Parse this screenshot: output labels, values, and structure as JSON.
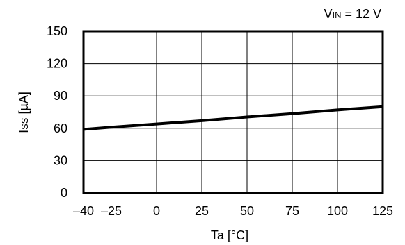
{
  "condition": {
    "symbol_main": "V",
    "symbol_sub": "IN",
    "value": " = 12 V"
  },
  "chart_data": {
    "type": "line",
    "xlabel": "Ta [°C]",
    "ylabel": {
      "main": "I",
      "sub": "SS",
      "unit": " [µA]"
    },
    "xlim": [
      -40,
      125
    ],
    "ylim": [
      0,
      150
    ],
    "x_ticks": [
      -40,
      -25,
      0,
      25,
      50,
      75,
      100,
      125
    ],
    "x_tick_labels": [
      "–40",
      "–25",
      "0",
      "25",
      "50",
      "75",
      "100",
      "125"
    ],
    "y_ticks": [
      0,
      30,
      60,
      90,
      120,
      150
    ],
    "y_tick_labels": [
      "0",
      "30",
      "60",
      "90",
      "120",
      "150"
    ],
    "grid": true,
    "series": [
      {
        "x": [
          -40,
          -25,
          0,
          25,
          50,
          75,
          100,
          125
        ],
        "y": [
          59,
          61,
          64,
          67,
          70.5,
          73.5,
          77,
          80
        ]
      }
    ]
  }
}
